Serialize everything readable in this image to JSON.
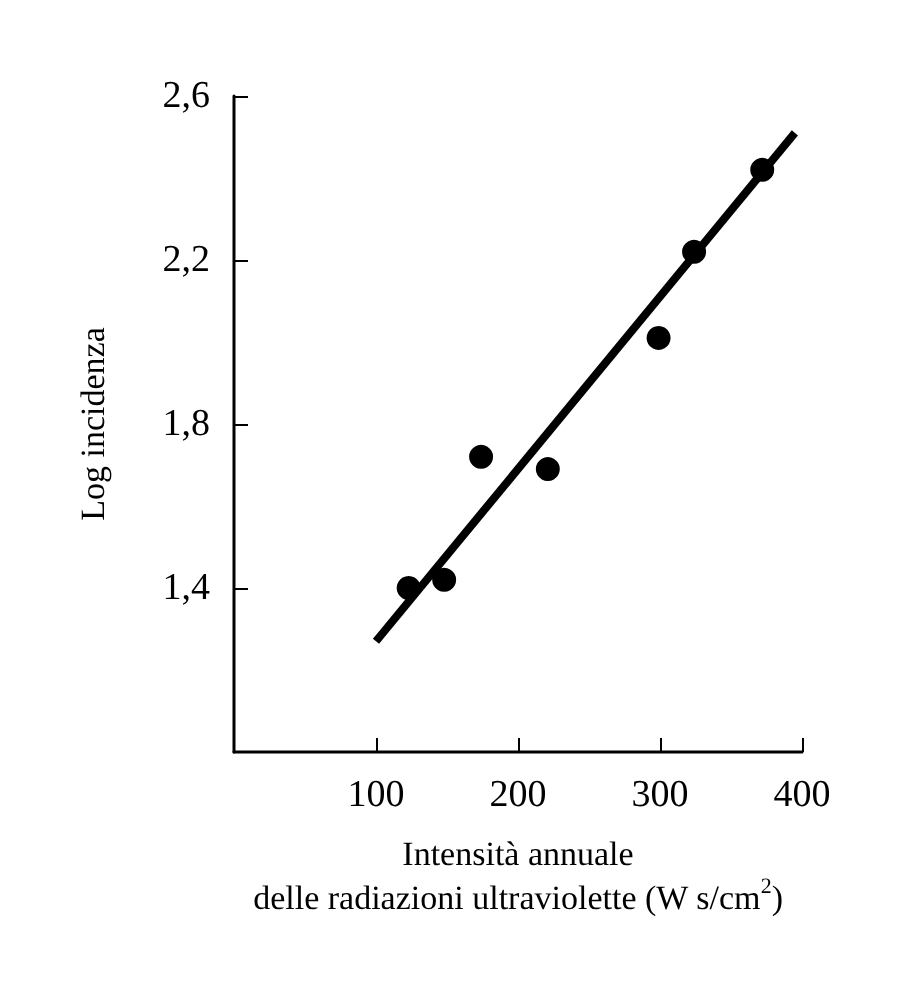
{
  "chart_data": {
    "type": "scatter",
    "xlabel": "Intensità annuale\ndelle radiazioni ultraviolette (W s/cm$^{2}$)",
    "ylabel": "Log incidenza",
    "series": [
      {
        "color": "#000000",
        "marker": "circle",
        "x": [
          123,
          148,
          174,
          221,
          299,
          324,
          372
        ],
        "values": [
          1.4,
          1.42,
          1.72,
          1.69,
          2.01,
          2.22,
          2.42
        ]
      },
      {
        "type": "line",
        "color": "#000000",
        "marker": "none",
        "line_style": "solid",
        "x": [
          100,
          395
        ],
        "values": [
          1.27,
          2.51
        ]
      }
    ],
    "xlim": [
      0,
      400
    ],
    "xticks": [
      100,
      200,
      300,
      400
    ],
    "ylim": [
      1.0,
      2.6
    ],
    "yticks": [
      {
        "value": 1.4,
        "label": "1,4"
      },
      {
        "value": 1.8,
        "label": "1,8"
      },
      {
        "value": 2.2,
        "label": "2,2"
      },
      {
        "value": 2.6,
        "label": "2,6"
      }
    ],
    "grid": false
  }
}
